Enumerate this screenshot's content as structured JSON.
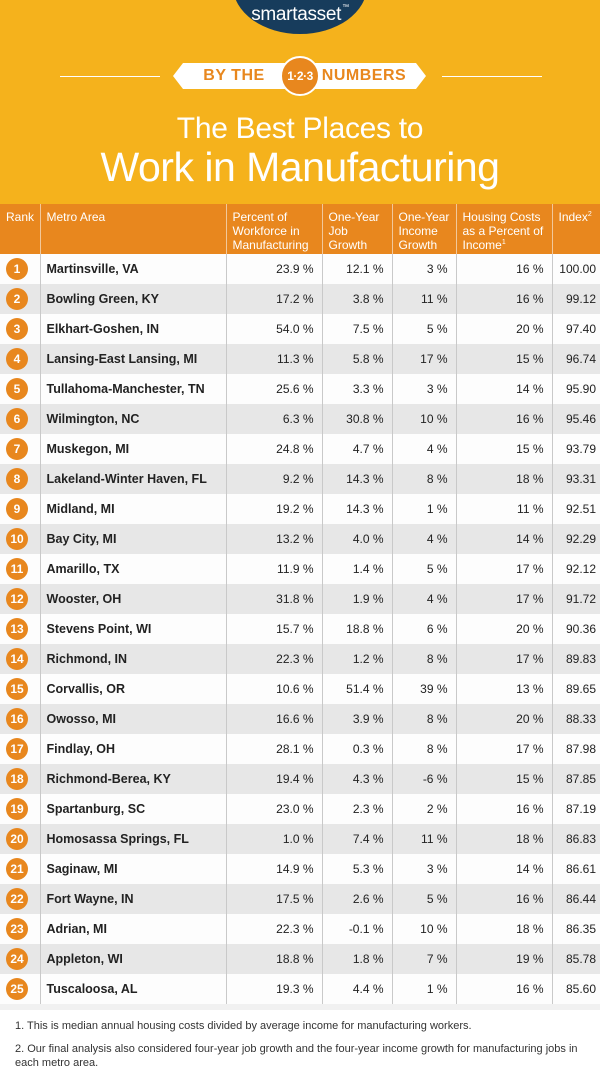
{
  "brand": {
    "logo": "smartasset",
    "tm": "™"
  },
  "banner": {
    "left": "BY THE",
    "numbers": "1·2·3",
    "right": "NUMBERS"
  },
  "title": {
    "line1": "The Best Places to",
    "line2": "Work in Manufacturing"
  },
  "columns": {
    "rank": "Rank",
    "metro": "Metro Area",
    "workforce": "Percent of Workforce in Manufacturing",
    "job_growth": "One-Year Job Growth",
    "income_growth": "One-Year Income Growth",
    "housing": "Housing Costs as a Percent of Income",
    "housing_fn": "1",
    "index": "Index",
    "index_fn": "2"
  },
  "rows": [
    {
      "rank": "1",
      "metro": "Martinsville, VA",
      "workforce": "23.9 %",
      "job": "12.1 %",
      "income": "3 %",
      "housing": "16 %",
      "index": "100.00"
    },
    {
      "rank": "2",
      "metro": "Bowling Green, KY",
      "workforce": "17.2 %",
      "job": "3.8 %",
      "income": "11 %",
      "housing": "16 %",
      "index": "99.12"
    },
    {
      "rank": "3",
      "metro": "Elkhart-Goshen, IN",
      "workforce": "54.0 %",
      "job": "7.5 %",
      "income": "5 %",
      "housing": "20 %",
      "index": "97.40"
    },
    {
      "rank": "4",
      "metro": "Lansing-East Lansing, MI",
      "workforce": "11.3 %",
      "job": "5.8 %",
      "income": "17 %",
      "housing": "15 %",
      "index": "96.74"
    },
    {
      "rank": "5",
      "metro": "Tullahoma-Manchester, TN",
      "workforce": "25.6 %",
      "job": "3.3 %",
      "income": "3 %",
      "housing": "14 %",
      "index": "95.90"
    },
    {
      "rank": "6",
      "metro": "Wilmington, NC",
      "workforce": "6.3 %",
      "job": "30.8 %",
      "income": "10 %",
      "housing": "16 %",
      "index": "95.46"
    },
    {
      "rank": "7",
      "metro": "Muskegon, MI",
      "workforce": "24.8 %",
      "job": "4.7 %",
      "income": "4 %",
      "housing": "15 %",
      "index": "93.79"
    },
    {
      "rank": "8",
      "metro": "Lakeland-Winter Haven, FL",
      "workforce": "9.2 %",
      "job": "14.3 %",
      "income": "8 %",
      "housing": "18 %",
      "index": "93.31"
    },
    {
      "rank": "9",
      "metro": "Midland, MI",
      "workforce": "19.2 %",
      "job": "14.3 %",
      "income": "1 %",
      "housing": "11 %",
      "index": "92.51"
    },
    {
      "rank": "10",
      "metro": "Bay City, MI",
      "workforce": "13.2 %",
      "job": "4.0 %",
      "income": "4 %",
      "housing": "14 %",
      "index": "92.29"
    },
    {
      "rank": "11",
      "metro": "Amarillo, TX",
      "workforce": "11.9 %",
      "job": "1.4 %",
      "income": "5 %",
      "housing": "17 %",
      "index": "92.12"
    },
    {
      "rank": "12",
      "metro": "Wooster, OH",
      "workforce": "31.8 %",
      "job": "1.9 %",
      "income": "4 %",
      "housing": "17 %",
      "index": "91.72"
    },
    {
      "rank": "13",
      "metro": "Stevens Point, WI",
      "workforce": "15.7 %",
      "job": "18.8 %",
      "income": "6 %",
      "housing": "20 %",
      "index": "90.36"
    },
    {
      "rank": "14",
      "metro": "Richmond, IN",
      "workforce": "22.3 %",
      "job": "1.2 %",
      "income": "8 %",
      "housing": "17 %",
      "index": "89.83"
    },
    {
      "rank": "15",
      "metro": "Corvallis, OR",
      "workforce": "10.6 %",
      "job": "51.4 %",
      "income": "39 %",
      "housing": "13 %",
      "index": "89.65"
    },
    {
      "rank": "16",
      "metro": "Owosso, MI",
      "workforce": "16.6 %",
      "job": "3.9 %",
      "income": "8 %",
      "housing": "20 %",
      "index": "88.33"
    },
    {
      "rank": "17",
      "metro": "Findlay, OH",
      "workforce": "28.1 %",
      "job": "0.3 %",
      "income": "8 %",
      "housing": "17 %",
      "index": "87.98"
    },
    {
      "rank": "18",
      "metro": "Richmond-Berea, KY",
      "workforce": "19.4 %",
      "job": "4.3 %",
      "income": "-6 %",
      "housing": "15 %",
      "index": "87.85"
    },
    {
      "rank": "19",
      "metro": "Spartanburg, SC",
      "workforce": "23.0 %",
      "job": "2.3 %",
      "income": "2 %",
      "housing": "16 %",
      "index": "87.19"
    },
    {
      "rank": "20",
      "metro": "Homosassa Springs, FL",
      "workforce": "1.0 %",
      "job": "7.4 %",
      "income": "11 %",
      "housing": "18 %",
      "index": "86.83"
    },
    {
      "rank": "21",
      "metro": "Saginaw, MI",
      "workforce": "14.9 %",
      "job": "5.3 %",
      "income": "3 %",
      "housing": "14 %",
      "index": "86.61"
    },
    {
      "rank": "22",
      "metro": "Fort Wayne, IN",
      "workforce": "17.5 %",
      "job": "2.6 %",
      "income": "5 %",
      "housing": "16 %",
      "index": "86.44"
    },
    {
      "rank": "23",
      "metro": "Adrian, MI",
      "workforce": "22.3 %",
      "job": "-0.1 %",
      "income": "10 %",
      "housing": "18 %",
      "index": "86.35"
    },
    {
      "rank": "24",
      "metro": "Appleton, WI",
      "workforce": "18.8 %",
      "job": "1.8 %",
      "income": "7 %",
      "housing": "19 %",
      "index": "85.78"
    },
    {
      "rank": "25",
      "metro": "Tuscaloosa, AL",
      "workforce": "19.3 %",
      "job": "4.4 %",
      "income": "1 %",
      "housing": "16 %",
      "index": "85.60"
    }
  ],
  "footnotes": [
    "1. This is median annual housing costs divided by average income for manufacturing workers.",
    "2. Our final analysis also considered four-year job growth and the four-year income growth for manufacturing jobs in each metro area."
  ],
  "colors": {
    "header_bg": "#f5b21c",
    "accent": "#e8871e",
    "navy": "#173c5c"
  }
}
